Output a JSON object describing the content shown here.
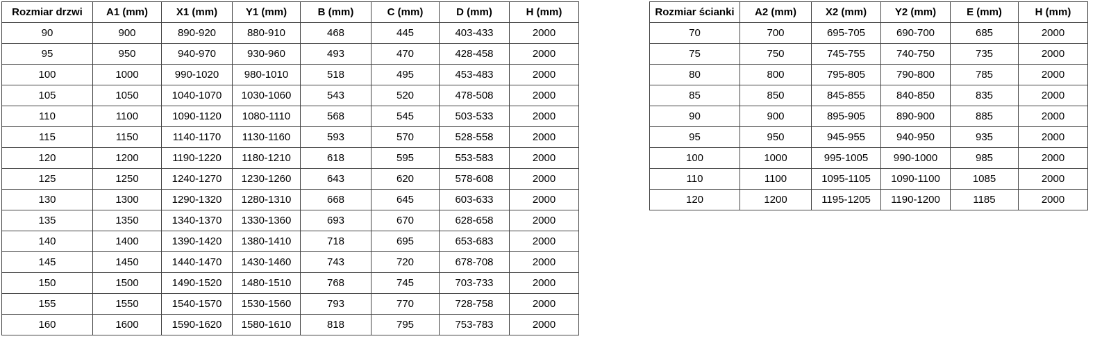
{
  "page": {
    "background_color": "#ffffff",
    "text_color": "#000000",
    "border_color": "#404040"
  },
  "door_table": {
    "title_column": "Rozmiar drzwi",
    "columns": [
      "Rozmiar drzwi",
      "A1 (mm)",
      "X1 (mm)",
      "Y1 (mm)",
      "B (mm)",
      "C (mm)",
      "D (mm)",
      "H (mm)"
    ],
    "rows": [
      [
        "90",
        "900",
        "890-920",
        "880-910",
        "468",
        "445",
        "403-433",
        "2000"
      ],
      [
        "95",
        "950",
        "940-970",
        "930-960",
        "493",
        "470",
        "428-458",
        "2000"
      ],
      [
        "100",
        "1000",
        "990-1020",
        "980-1010",
        "518",
        "495",
        "453-483",
        "2000"
      ],
      [
        "105",
        "1050",
        "1040-1070",
        "1030-1060",
        "543",
        "520",
        "478-508",
        "2000"
      ],
      [
        "110",
        "1100",
        "1090-1120",
        "1080-1110",
        "568",
        "545",
        "503-533",
        "2000"
      ],
      [
        "115",
        "1150",
        "1140-1170",
        "1130-1160",
        "593",
        "570",
        "528-558",
        "2000"
      ],
      [
        "120",
        "1200",
        "1190-1220",
        "1180-1210",
        "618",
        "595",
        "553-583",
        "2000"
      ],
      [
        "125",
        "1250",
        "1240-1270",
        "1230-1260",
        "643",
        "620",
        "578-608",
        "2000"
      ],
      [
        "130",
        "1300",
        "1290-1320",
        "1280-1310",
        "668",
        "645",
        "603-633",
        "2000"
      ],
      [
        "135",
        "1350",
        "1340-1370",
        "1330-1360",
        "693",
        "670",
        "628-658",
        "2000"
      ],
      [
        "140",
        "1400",
        "1390-1420",
        "1380-1410",
        "718",
        "695",
        "653-683",
        "2000"
      ],
      [
        "145",
        "1450",
        "1440-1470",
        "1430-1460",
        "743",
        "720",
        "678-708",
        "2000"
      ],
      [
        "150",
        "1500",
        "1490-1520",
        "1480-1510",
        "768",
        "745",
        "703-733",
        "2000"
      ],
      [
        "155",
        "1550",
        "1540-1570",
        "1530-1560",
        "793",
        "770",
        "728-758",
        "2000"
      ],
      [
        "160",
        "1600",
        "1590-1620",
        "1580-1610",
        "818",
        "795",
        "753-783",
        "2000"
      ]
    ]
  },
  "wall_table": {
    "title_column": "Rozmiar ścianki",
    "columns": [
      "Rozmiar ścianki",
      "A2 (mm)",
      "X2 (mm)",
      "Y2 (mm)",
      "E (mm)",
      "H (mm)"
    ],
    "rows": [
      [
        "70",
        "700",
        "695-705",
        "690-700",
        "685",
        "2000"
      ],
      [
        "75",
        "750",
        "745-755",
        "740-750",
        "735",
        "2000"
      ],
      [
        "80",
        "800",
        "795-805",
        "790-800",
        "785",
        "2000"
      ],
      [
        "85",
        "850",
        "845-855",
        "840-850",
        "835",
        "2000"
      ],
      [
        "90",
        "900",
        "895-905",
        "890-900",
        "885",
        "2000"
      ],
      [
        "95",
        "950",
        "945-955",
        "940-950",
        "935",
        "2000"
      ],
      [
        "100",
        "1000",
        "995-1005",
        "990-1000",
        "985",
        "2000"
      ],
      [
        "110",
        "1100",
        "1095-1105",
        "1090-1100",
        "1085",
        "2000"
      ],
      [
        "120",
        "1200",
        "1195-1205",
        "1190-1200",
        "1185",
        "2000"
      ]
    ]
  }
}
